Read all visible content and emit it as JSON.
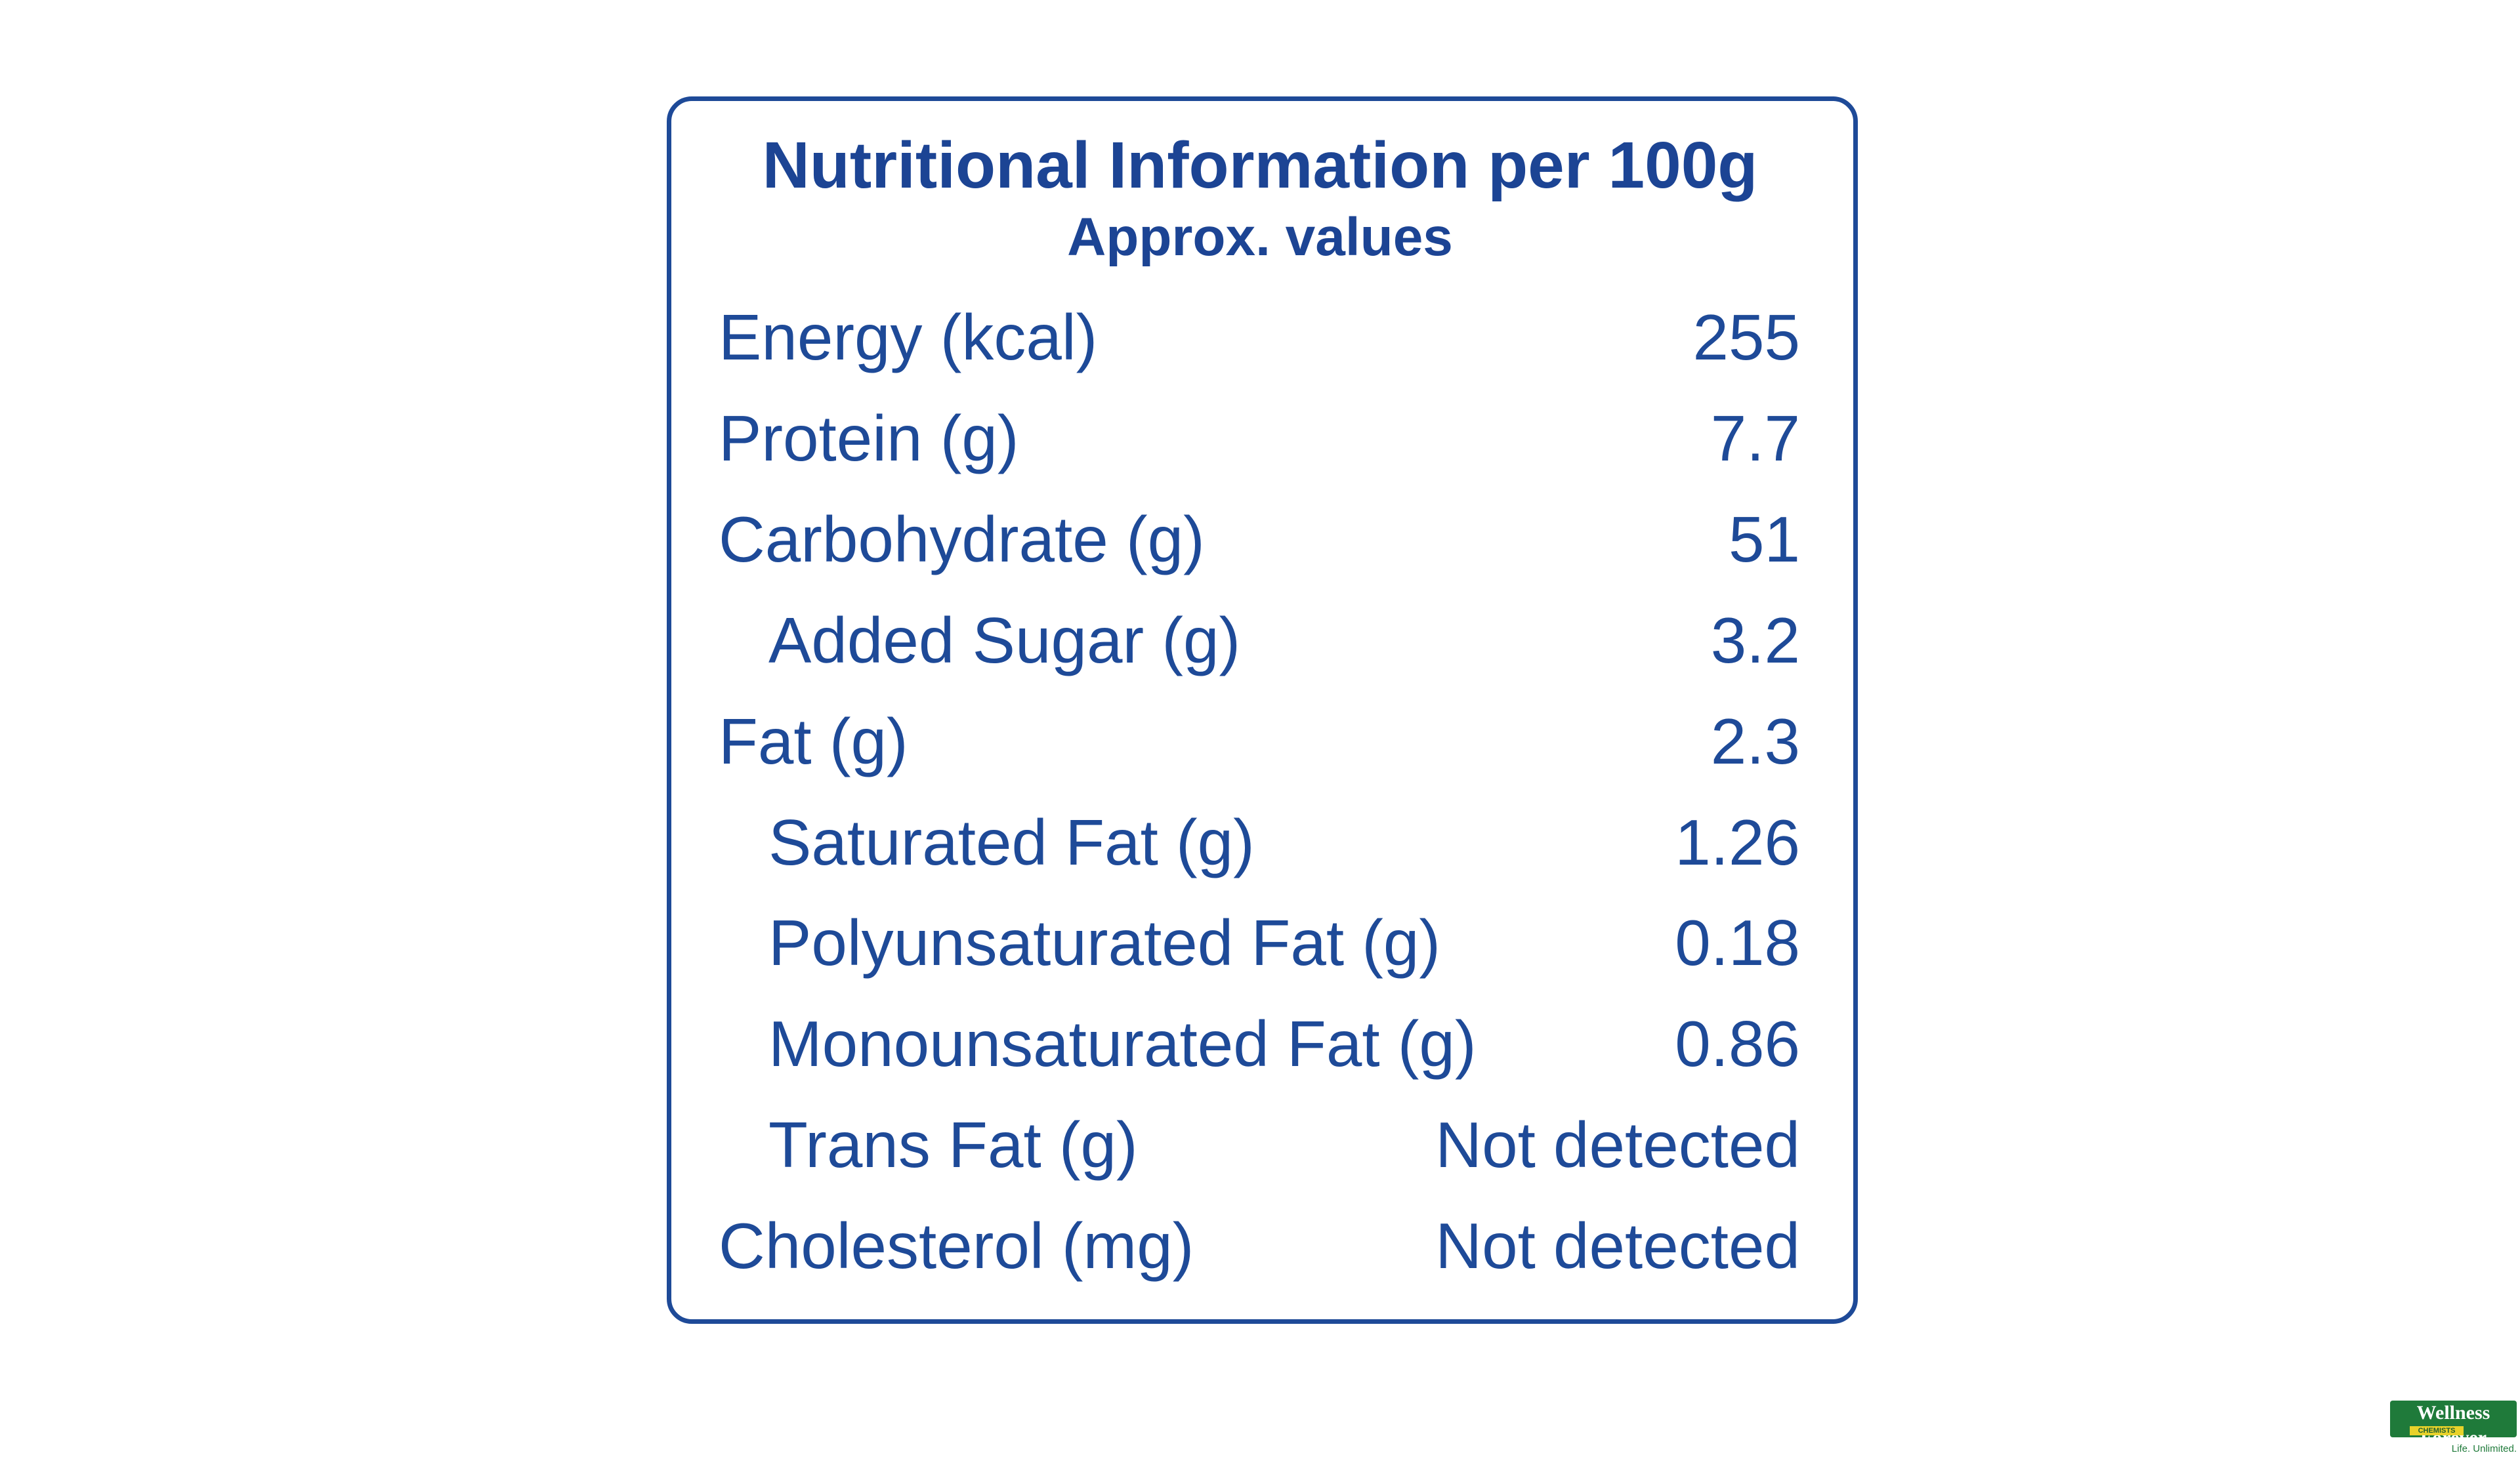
{
  "header": {
    "title": "Nutritional Information per 100g",
    "subtitle": "Approx. values"
  },
  "table": {
    "rows": [
      {
        "label": "Energy (kcal)",
        "value": 255
      },
      {
        "label": "Protein (g)",
        "value": 7.7
      },
      {
        "label": "Carbohydrate (g)",
        "value": 51,
        "sub_rows": [
          {
            "label": "Added Sugar (g)",
            "value": 3.2
          }
        ]
      },
      {
        "label": "Fat (g)",
        "value": 2.3,
        "sub_rows": [
          {
            "label": "Saturated Fat (g)",
            "value": 1.26
          },
          {
            "label": "Polyunsaturated Fat (g)",
            "value": 0.18
          },
          {
            "label": "Monounsaturated Fat (g)",
            "value": 0.86
          },
          {
            "label": "Trans Fat (g)",
            "value": "Not detected"
          }
        ]
      },
      {
        "label": "Cholesterol (mg)",
        "value": "Not detected"
      }
    ]
  },
  "logo": {
    "name": "Wellness Forever",
    "subtitle": "CHEMISTS",
    "tagline": "Life. Unlimited."
  }
}
